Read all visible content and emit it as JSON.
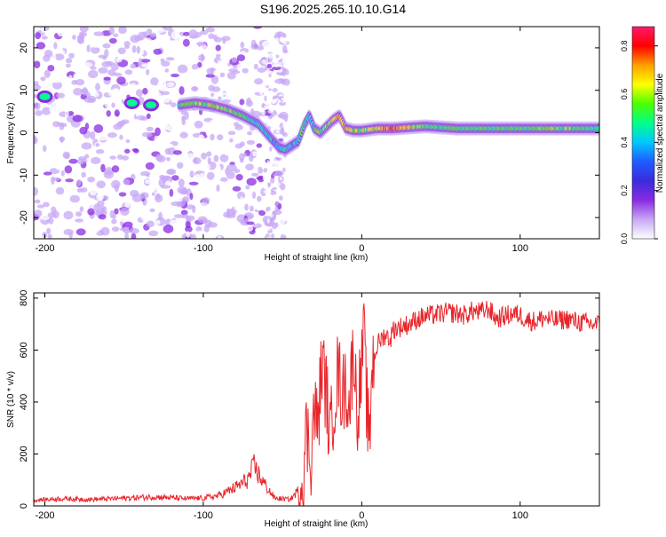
{
  "title": "S196.2025.265.10.10.G14",
  "colors": {
    "snr_line": "#e8252a",
    "axis": "#000000",
    "rainbow": [
      "#ffffff",
      "#c7a8f5",
      "#8a2be2",
      "#3a2bdc",
      "#1f5cff",
      "#00c8ff",
      "#00ff8c",
      "#4cff00",
      "#ffff00",
      "#ff9f00",
      "#ff0000",
      "#ff1a6c"
    ]
  },
  "chart_data": [
    {
      "type": "heatmap",
      "name": "spectrogram",
      "xlabel": "Height of straight line (km)",
      "ylabel": "Frequency (Hz)",
      "xlim": [
        -207,
        150
      ],
      "ylim": [
        -25,
        25
      ],
      "xticks": [
        -200,
        -100,
        0,
        100
      ],
      "yticks": [
        20,
        10,
        0,
        -10,
        -20
      ],
      "track": {
        "x": [
          -115,
          -105,
          -95,
          -85,
          -75,
          -65,
          -58,
          -52,
          -48,
          -44,
          -40,
          -36,
          -33,
          -30,
          -26,
          -22,
          -18,
          -14,
          -10,
          -5,
          0,
          10,
          20,
          40,
          60,
          80,
          100,
          120,
          140,
          150
        ],
        "freq": [
          6.5,
          7,
          6.5,
          5.5,
          4,
          2,
          -1,
          -3.5,
          -4,
          -3,
          -2,
          2,
          4,
          1,
          0,
          1.5,
          3,
          4,
          1,
          0.5,
          0.5,
          1,
          1,
          1.5,
          1,
          1,
          1,
          1,
          1,
          1
        ],
        "amplitude": [
          0.55,
          0.6,
          0.62,
          0.6,
          0.55,
          0.5,
          0.45,
          0.45,
          0.5,
          0.45,
          0.5,
          0.55,
          0.5,
          0.5,
          0.6,
          0.6,
          0.65,
          0.75,
          0.7,
          0.6,
          0.6,
          0.65,
          0.85,
          0.55,
          0.55,
          0.55,
          0.55,
          0.6,
          0.55,
          0.55
        ]
      },
      "early_blobs": [
        {
          "x": -200,
          "freq": 8.5,
          "amplitude": 0.55
        },
        {
          "x": -145,
          "freq": 7,
          "amplitude": 0.5
        },
        {
          "x": -133,
          "freq": 6.5,
          "amplitude": 0.5
        }
      ],
      "colorbar": {
        "label": "Normalized spectral amplitude",
        "range": [
          0,
          0.88
        ],
        "ticks": [
          0,
          0.2,
          0.4,
          0.6,
          0.8
        ],
        "tick_labels": [
          "0.0",
          "0.2",
          "0.4",
          "0.6",
          "0.8"
        ]
      }
    },
    {
      "type": "line",
      "name": "snr",
      "xlabel": "Height of straight line (km)",
      "ylabel": "SNR (10 * v/v)",
      "xlim": [
        -207,
        150
      ],
      "ylim": [
        0,
        820
      ],
      "xticks": [
        -200,
        -100,
        0,
        100
      ],
      "yticks": [
        0,
        200,
        400,
        600,
        800
      ],
      "series": [
        {
          "name": "SNR",
          "x": [
            -207,
            -190,
            -170,
            -150,
            -130,
            -110,
            -100,
            -90,
            -80,
            -72,
            -68,
            -62,
            -55,
            -45,
            -40,
            -37,
            -35,
            -32,
            -30,
            -28,
            -25,
            -22,
            -20,
            -18,
            -15,
            -12,
            -10,
            -8,
            -5,
            -3,
            -1,
            0,
            1,
            3,
            5,
            6,
            8,
            10,
            12,
            15,
            18,
            20,
            25,
            30,
            35,
            40,
            45,
            50,
            55,
            60,
            65,
            70,
            75,
            80,
            85,
            90,
            95,
            100,
            105,
            110,
            115,
            120,
            125,
            130,
            135,
            140,
            145,
            150
          ],
          "y": [
            22,
            28,
            25,
            30,
            35,
            28,
            30,
            40,
            70,
            100,
            150,
            90,
            30,
            25,
            60,
            120,
            280,
            200,
            380,
            300,
            550,
            420,
            250,
            380,
            520,
            420,
            480,
            380,
            620,
            350,
            480,
            520,
            680,
            420,
            200,
            520,
            580,
            620,
            640,
            660,
            640,
            680,
            690,
            700,
            720,
            730,
            735,
            740,
            745,
            740,
            735,
            750,
            745,
            760,
            720,
            730,
            740,
            735,
            715,
            710,
            725,
            715,
            715,
            720,
            710,
            705,
            700,
            700
          ],
          "noise_amplitude": 40
        }
      ]
    }
  ]
}
